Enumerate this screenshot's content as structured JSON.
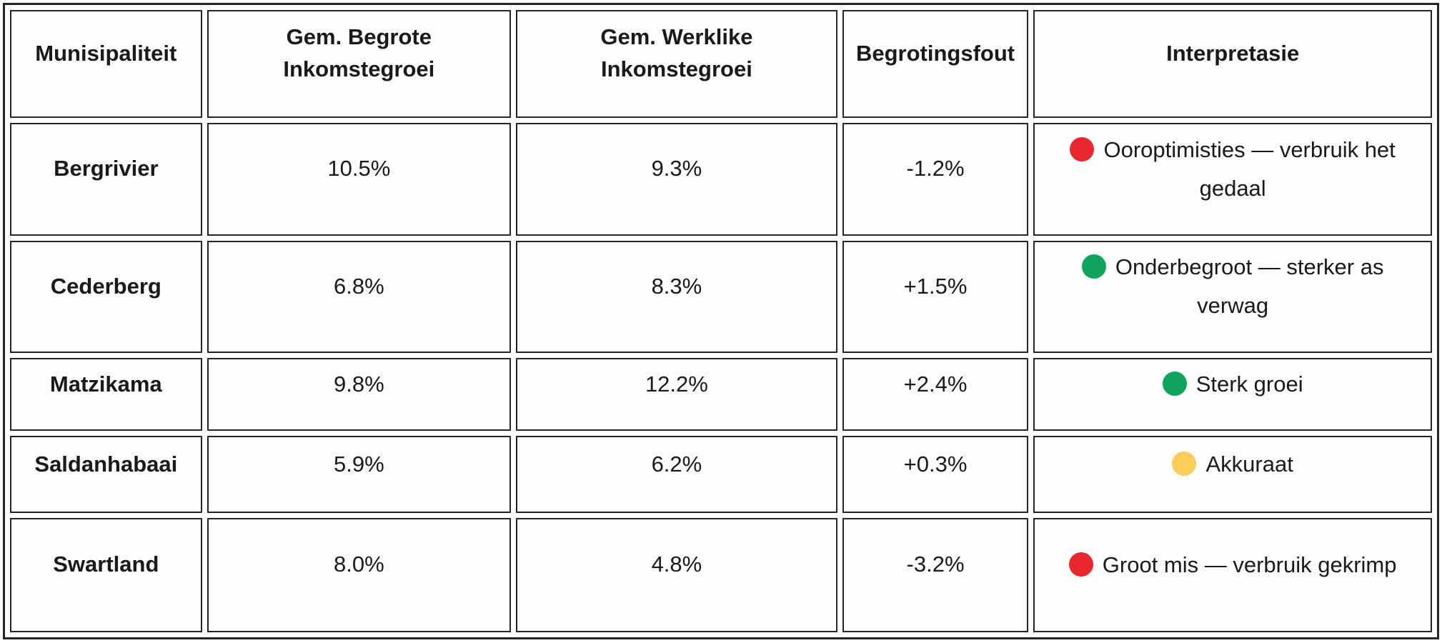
{
  "colors": {
    "red": "#E8262B",
    "green": "#0EA45C",
    "yellow": "#FBCE5B",
    "border": "#22262B"
  },
  "table": {
    "headers": {
      "municipality": "Munisipaliteit",
      "budgeted": "Gem. Begrote Inkomstegroei",
      "actual": "Gem. Werklike Inkomstegroei",
      "error": "Begrotingsfout",
      "interpretation": "Interpretasie"
    },
    "rows": [
      {
        "municipality": "Bergrivier",
        "budgeted": "10.5%",
        "actual": "9.3%",
        "error": "-1.2%",
        "interpretation": "Ooroptimisties — verbruik het gedaal",
        "status_icon": "red-dot",
        "status_color": "#E8262B"
      },
      {
        "municipality": "Cederberg",
        "budgeted": "6.8%",
        "actual": "8.3%",
        "error": "+1.5%",
        "interpretation": "Onderbegroot — sterker as verwag",
        "status_icon": "green-dot",
        "status_color": "#0EA45C"
      },
      {
        "municipality": "Matzikama",
        "budgeted": "9.8%",
        "actual": "12.2%",
        "error": "+2.4%",
        "interpretation": "Sterk groei",
        "status_icon": "green-dot",
        "status_color": "#0EA45C"
      },
      {
        "municipality": "Saldanhabaai",
        "budgeted": "5.9%",
        "actual": "6.2%",
        "error": "+0.3%",
        "interpretation": "Akkuraat",
        "status_icon": "yellow-dot",
        "status_color": "#FBCE5B"
      },
      {
        "municipality": "Swartland",
        "budgeted": "8.0%",
        "actual": "4.8%",
        "error": "-3.2%",
        "interpretation": "Groot mis — verbruik gekrimp",
        "status_icon": "red-dot",
        "status_color": "#E8262B"
      }
    ]
  },
  "chart_data": {
    "type": "table",
    "columns": [
      "Munisipaliteit",
      "Gem. Begrote Inkomstegroei",
      "Gem. Werklike Inkomstegroei",
      "Begrotingsfout",
      "Interpretasie"
    ],
    "rows": [
      [
        "Bergrivier",
        "10.5%",
        "9.3%",
        "-1.2%",
        "Ooroptimisties — verbruik het gedaal"
      ],
      [
        "Cederberg",
        "6.8%",
        "8.3%",
        "+1.5%",
        "Onderbegroot — sterker as verwag"
      ],
      [
        "Matzikama",
        "9.8%",
        "12.2%",
        "+2.4%",
        "Sterk groei"
      ],
      [
        "Saldanhabaai",
        "5.9%",
        "6.2%",
        "+0.3%",
        "Akkuraat"
      ],
      [
        "Swartland",
        "8.0%",
        "4.8%",
        "-3.2%",
        "Groot mis — verbruik gekrimp"
      ]
    ],
    "status_dots": [
      "red",
      "green",
      "green",
      "yellow",
      "red"
    ],
    "numeric_series": [
      {
        "name": "Gem. Begrote Inkomstegroei (%)",
        "values": [
          10.5,
          6.8,
          9.8,
          5.9,
          8.0
        ]
      },
      {
        "name": "Gem. Werklike Inkomstegroei (%)",
        "values": [
          9.3,
          8.3,
          12.2,
          6.2,
          4.8
        ]
      },
      {
        "name": "Begrotingsfout (%)",
        "values": [
          -1.2,
          1.5,
          2.4,
          0.3,
          -3.2
        ]
      }
    ]
  }
}
